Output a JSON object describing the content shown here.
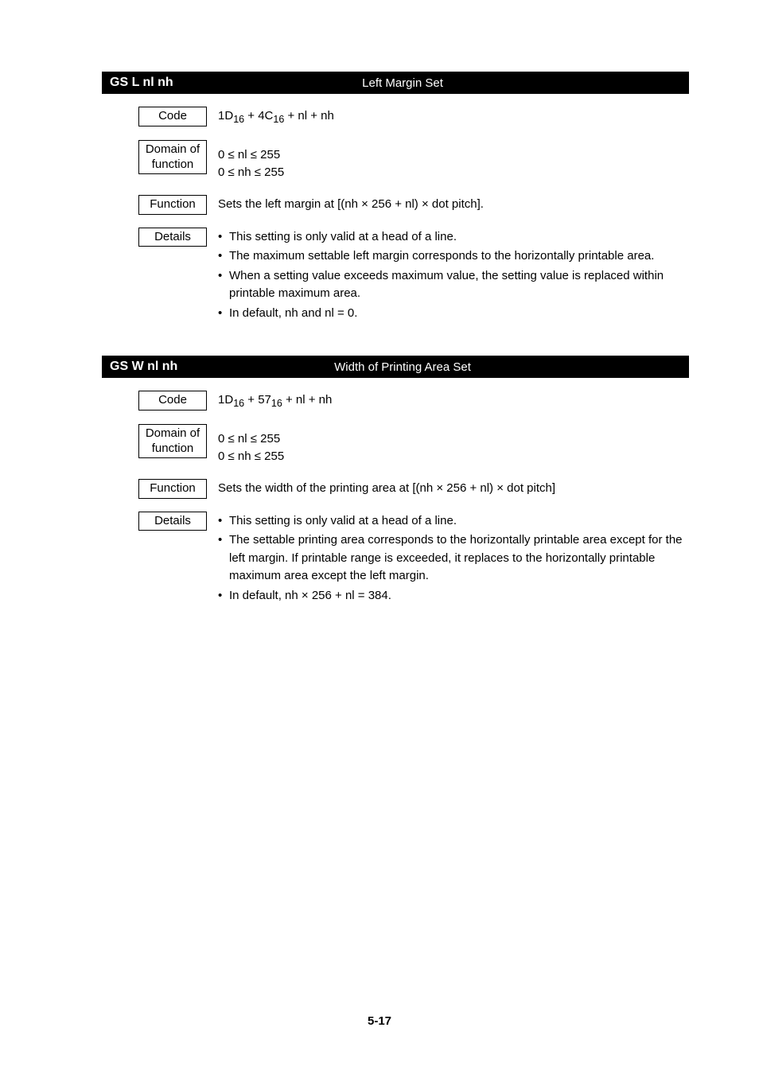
{
  "section1": {
    "cmd_name": "GS L nl nh",
    "cmd_title": "Left Margin Set",
    "code_label": "Code",
    "code_value_html": "1D<sub>16</sub> + 4C<sub>16</sub> + nl + nh",
    "domain_label_line1": "Domain of",
    "domain_label_line2": "function",
    "domain_line1": "0 ≤ nl ≤ 255",
    "domain_line2": "0 ≤ nh ≤ 255",
    "function_label": "Function",
    "function_text": "Sets the left margin at [(nh × 256 + nl) × dot pitch].",
    "details_label": "Details",
    "details_bullets": [
      "This setting is only valid at a head of a line.",
      "The maximum settable left margin corresponds to the horizontally printable area.",
      "When a setting value exceeds maximum value, the setting value is replaced within printable maximum area.",
      "In default, nh and nl = 0."
    ]
  },
  "section2": {
    "cmd_name": "GS W nl nh",
    "cmd_title": "Width of Printing Area Set",
    "code_label": "Code",
    "code_value_html": "1D<sub>16</sub> + 57<sub>16</sub> + nl + nh",
    "domain_label_line1": "Domain of",
    "domain_label_line2": "function",
    "domain_line1": "0 ≤ nl ≤ 255",
    "domain_line2": "0 ≤ nh ≤ 255",
    "function_label": "Function",
    "function_text": "Sets the width of the printing area at [(nh × 256 + nl) × dot pitch]",
    "details_label": "Details",
    "details_bullets": [
      "This setting is only valid at a head of a line.",
      "The settable printing area corresponds to the horizontally printable area except for the left margin. If printable range is exceeded, it replaces to the horizontally printable maximum area except the left margin.",
      "In default, nh × 256 + nl = 384."
    ]
  },
  "page_number": "5-17",
  "style": {
    "header_bg": "#000000",
    "header_fg": "#ffffff",
    "body_bg": "#ffffff",
    "border_color": "#000000",
    "font_body": 15,
    "font_sub": 11
  }
}
